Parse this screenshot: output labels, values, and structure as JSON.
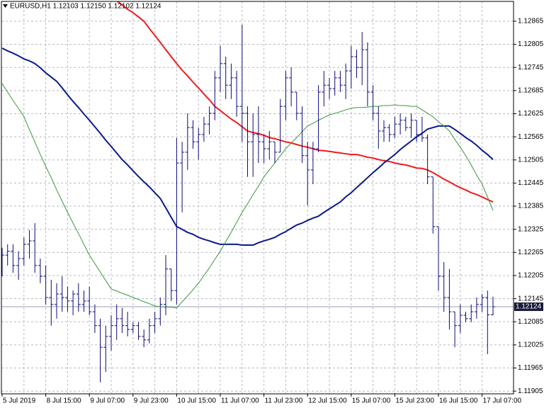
{
  "chart_data": {
    "type": "ohlc",
    "title": "EURUSD,H1  1.12103 1.12150 1.12102 1.12124",
    "categories": [
      "5 Jul 2019",
      null,
      null,
      null,
      null,
      null,
      null,
      null,
      "8 Jul 15:00",
      null,
      null,
      null,
      null,
      null,
      null,
      null,
      "9 Jul 07:00",
      null,
      null,
      null,
      null,
      null,
      null,
      null,
      "9 Jul 23:00",
      null,
      null,
      null,
      null,
      null,
      null,
      null,
      "10 Jul 15:00",
      null,
      null,
      null,
      null,
      null,
      null,
      null,
      "11 Jul 07:00",
      null,
      null,
      null,
      null,
      null,
      null,
      null,
      "11 Jul 23:00",
      null,
      null,
      null,
      null,
      null,
      null,
      null,
      "12 Jul 15:00",
      null,
      null,
      null,
      null,
      null,
      null,
      null,
      "15 Jul 07:00",
      null,
      null,
      null,
      null,
      null,
      null,
      null,
      "15 Jul 23:00",
      null,
      null,
      null,
      null,
      null,
      null,
      null,
      "16 Jul 15:00",
      null,
      null,
      null,
      null,
      null,
      null,
      null,
      "17 Jul 07:00",
      null,
      null
    ],
    "color": "#0b0b7a",
    "open": [
      1.12222,
      1.12258,
      1.12268,
      1.12231,
      1.12249,
      1.12286,
      1.12295,
      1.12231,
      1.12203,
      1.12148,
      1.1213,
      1.12157,
      1.12148,
      1.12139,
      1.12157,
      1.1213,
      1.12139,
      1.12111,
      1.12075,
      1.12019,
      1.12047,
      1.12075,
      1.12093,
      1.12075,
      1.12065,
      1.12075,
      1.12047,
      1.12038,
      1.12075,
      1.12093,
      1.1213,
      1.12222,
      1.12166,
      1.12497,
      1.12525,
      1.12589,
      1.12552,
      1.12571,
      1.12598,
      1.12626,
      1.12718,
      1.12755,
      1.12699,
      1.12718,
      1.12644,
      1.12626,
      1.12552,
      1.12571,
      1.12552,
      1.12534,
      1.12552,
      1.12525,
      1.12644,
      1.12718,
      1.12681,
      1.12626,
      1.12516,
      1.12479,
      1.12534,
      1.12681,
      1.12699,
      1.1269,
      1.12718,
      1.12699,
      1.12736,
      1.12773,
      1.12745,
      1.12791,
      1.12681,
      1.12626,
      1.1258,
      1.12589,
      1.12571,
      1.12598,
      1.12608,
      1.12589,
      1.12608,
      1.12571,
      1.12562,
      1.12461,
      1.12332,
      1.12203,
      1.12148,
      1.12111,
      1.12075,
      1.12102,
      1.12093,
      1.12111,
      1.1213,
      1.12148,
      1.12103
    ],
    "high": [
      1.12277,
      1.12286,
      1.12286,
      1.12268,
      1.12304,
      1.12323,
      1.12341,
      1.12249,
      1.12231,
      1.12194,
      1.12185,
      1.12203,
      1.12176,
      1.12166,
      1.12185,
      1.12166,
      1.12176,
      1.1213,
      1.12093,
      1.12075,
      1.12102,
      1.1213,
      1.12121,
      1.12111,
      1.12084,
      1.12084,
      1.12065,
      1.12093,
      1.12111,
      1.12148,
      1.12258,
      1.12222,
      1.12562,
      1.12552,
      1.12626,
      1.12608,
      1.12589,
      1.12617,
      1.12644,
      1.12736,
      1.12801,
      1.12773,
      1.12755,
      1.12736,
      1.12856,
      1.12644,
      1.12626,
      1.12644,
      1.12571,
      1.1258,
      1.12552,
      1.12663,
      1.12736,
      1.12745,
      1.12681,
      1.12644,
      1.12552,
      1.12552,
      1.12699,
      1.12736,
      1.12718,
      1.12736,
      1.12736,
      1.12755,
      1.12801,
      1.12791,
      1.12837,
      1.1281,
      1.12699,
      1.12644,
      1.12608,
      1.12598,
      1.12617,
      1.12626,
      1.12617,
      1.12626,
      1.12608,
      1.12617,
      1.12571,
      1.12461,
      1.12332,
      1.1224,
      1.12222,
      1.12111,
      1.1213,
      1.12111,
      1.1213,
      1.12148,
      1.12157,
      1.12166,
      1.1215
    ],
    "low": [
      1.12203,
      1.12231,
      1.12212,
      1.12194,
      1.12231,
      1.12249,
      1.12212,
      1.12185,
      1.1213,
      1.12075,
      1.12093,
      1.12111,
      1.12111,
      1.12102,
      1.12111,
      1.12111,
      1.12102,
      1.12056,
      1.11928,
      1.11955,
      1.1201,
      1.12038,
      1.12056,
      1.12047,
      1.12056,
      1.12038,
      1.12019,
      1.12029,
      1.12056,
      1.12075,
      1.12102,
      1.12139,
      1.1213,
      1.12369,
      1.12479,
      1.12534,
      1.12506,
      1.12552,
      1.12571,
      1.12608,
      1.12681,
      1.12663,
      1.12663,
      1.12617,
      1.12552,
      1.12461,
      1.12461,
      1.12497,
      1.12497,
      1.12506,
      1.12497,
      1.12525,
      1.12608,
      1.12644,
      1.12608,
      1.12497,
      1.12387,
      1.12442,
      1.12525,
      1.12644,
      1.12663,
      1.12672,
      1.12681,
      1.12663,
      1.1269,
      1.12718,
      1.12699,
      1.12644,
      1.12608,
      1.12534,
      1.12552,
      1.12552,
      1.12562,
      1.12571,
      1.1258,
      1.12562,
      1.12552,
      1.12552,
      1.12442,
      1.12314,
      1.12166,
      1.12111,
      1.12065,
      1.12019,
      1.12056,
      1.12084,
      1.12084,
      1.12093,
      1.12111,
      1.12001,
      1.12102
    ],
    "close": [
      1.12258,
      1.12268,
      1.12231,
      1.12249,
      1.12286,
      1.12295,
      1.12231,
      1.12203,
      1.12148,
      1.1213,
      1.12157,
      1.12148,
      1.12139,
      1.12157,
      1.1213,
      1.12139,
      1.12111,
      1.12075,
      1.12019,
      1.12047,
      1.12075,
      1.12093,
      1.12075,
      1.12065,
      1.12075,
      1.12047,
      1.12038,
      1.12075,
      1.12093,
      1.1213,
      1.12222,
      1.12166,
      1.12497,
      1.12525,
      1.12589,
      1.12552,
      1.12571,
      1.12598,
      1.12626,
      1.12718,
      1.12755,
      1.12699,
      1.12718,
      1.12644,
      1.12626,
      1.12552,
      1.12571,
      1.12552,
      1.12534,
      1.12552,
      1.12525,
      1.12644,
      1.12718,
      1.12681,
      1.12626,
      1.12516,
      1.12479,
      1.12534,
      1.12681,
      1.12699,
      1.1269,
      1.12718,
      1.12699,
      1.12736,
      1.12773,
      1.12745,
      1.12791,
      1.12681,
      1.12626,
      1.1258,
      1.12589,
      1.12571,
      1.12598,
      1.12608,
      1.12589,
      1.12608,
      1.12571,
      1.12562,
      1.12461,
      1.12332,
      1.12203,
      1.12148,
      1.12111,
      1.12075,
      1.12102,
      1.12093,
      1.12111,
      1.1213,
      1.12148,
      1.12103,
      1.12124
    ],
    "series": [
      {
        "color": "#ee1c1c",
        "values": [
          null,
          null,
          null,
          null,
          null,
          null,
          null,
          null,
          null,
          null,
          null,
          null,
          null,
          null,
          null,
          null,
          null,
          null,
          null,
          null,
          1.12929,
          1.12918,
          1.12907,
          1.12896,
          1.12887,
          1.12876,
          1.12865,
          1.12846,
          1.12828,
          1.1281,
          1.12791,
          1.12773,
          1.12755,
          1.12738,
          1.12723,
          1.12707,
          1.12692,
          1.12676,
          1.12661,
          1.12644,
          1.12633,
          1.12622,
          1.12611,
          1.12602,
          1.12591,
          1.1258,
          1.12576,
          1.12573,
          1.12569,
          1.12563,
          1.1256,
          1.12556,
          1.12552,
          1.12549,
          1.12545,
          1.12541,
          1.12538,
          1.12534,
          1.1253,
          1.12529,
          1.12527,
          1.12525,
          1.12523,
          1.12521,
          1.12519,
          1.12519,
          1.12516,
          1.12512,
          1.1251,
          1.12506,
          1.12503,
          1.12501,
          1.12497,
          1.12494,
          1.12492,
          1.12488,
          1.12484,
          1.12483,
          1.12479,
          1.12472,
          1.12464,
          1.12455,
          1.12448,
          1.1244,
          1.12433,
          1.12427,
          1.1242,
          1.12415,
          1.12409,
          1.12402,
          1.12396
        ]
      },
      {
        "color": "#0a1a8a",
        "values": [
          1.12795,
          1.12788,
          1.12782,
          1.12775,
          1.12767,
          1.12762,
          1.12755,
          1.12744,
          1.12731,
          1.1272,
          1.12709,
          1.12692,
          1.12674,
          1.12657,
          1.12641,
          1.12624,
          1.12608,
          1.12591,
          1.12574,
          1.12556,
          1.1254,
          1.12523,
          1.12506,
          1.12492,
          1.12477,
          1.12462,
          1.12448,
          1.12435,
          1.1242,
          1.12405,
          1.12381,
          1.12356,
          1.12332,
          1.12325,
          1.12317,
          1.12312,
          1.12304,
          1.12299,
          1.12295,
          1.1229,
          1.12286,
          1.12286,
          1.12286,
          1.12286,
          1.12284,
          1.12284,
          1.12284,
          1.1229,
          1.12295,
          1.12299,
          1.12304,
          1.12312,
          1.12319,
          1.12328,
          1.12336,
          1.12341,
          1.12348,
          1.12354,
          1.12359,
          1.12369,
          1.12378,
          1.12387,
          1.12396,
          1.12409,
          1.1242,
          1.12433,
          1.12446,
          1.12459,
          1.12472,
          1.12484,
          1.12497,
          1.12508,
          1.12519,
          1.12532,
          1.12543,
          1.12554,
          1.12565,
          1.12574,
          1.12585,
          1.12589,
          1.12593,
          1.12593,
          1.12593,
          1.12584,
          1.12574,
          1.12563,
          1.12554,
          1.12543,
          1.1253,
          1.12519,
          1.12506
        ]
      },
      {
        "color": "#3c963c",
        "values": [
          1.12703,
          1.12681,
          1.12659,
          1.12639,
          1.12617,
          1.12584,
          1.12552,
          1.12519,
          1.12488,
          1.12459,
          1.12427,
          1.12398,
          1.12369,
          1.12341,
          1.12314,
          1.12286,
          1.12258,
          1.12236,
          1.12214,
          1.12192,
          1.1217,
          1.12165,
          1.12159,
          1.12154,
          1.12148,
          1.12143,
          1.12137,
          1.12132,
          1.12126,
          1.12124,
          1.12123,
          1.12123,
          1.12121,
          1.12137,
          1.12152,
          1.12168,
          1.12185,
          1.12205,
          1.12225,
          1.12247,
          1.12268,
          1.12293,
          1.12317,
          1.12343,
          1.12369,
          1.12391,
          1.12415,
          1.12437,
          1.12461,
          1.12479,
          1.12497,
          1.12516,
          1.12534,
          1.12549,
          1.12563,
          1.12578,
          1.12593,
          1.126,
          1.12608,
          1.12615,
          1.12622,
          1.12626,
          1.1263,
          1.12635,
          1.12639,
          1.12641,
          1.12641,
          1.12642,
          1.12644,
          1.12644,
          1.12646,
          1.12646,
          1.12648,
          1.12646,
          1.12646,
          1.12644,
          1.12644,
          1.12635,
          1.12626,
          1.12617,
          1.12604,
          1.12593,
          1.1258,
          1.12558,
          1.12538,
          1.12516,
          1.12492,
          1.12466,
          1.12442,
          1.12409,
          1.12374
        ]
      }
    ],
    "current_price": 1.12124,
    "ylim": [
      1.11898,
      1.1292
    ],
    "yticks": [
      1.12865,
      1.12805,
      1.12745,
      1.12685,
      1.12625,
      1.12565,
      1.12505,
      1.12445,
      1.12385,
      1.12325,
      1.12265,
      1.12205,
      1.12145,
      1.12085,
      1.12025,
      1.11965,
      1.11905
    ],
    "grid": true
  }
}
